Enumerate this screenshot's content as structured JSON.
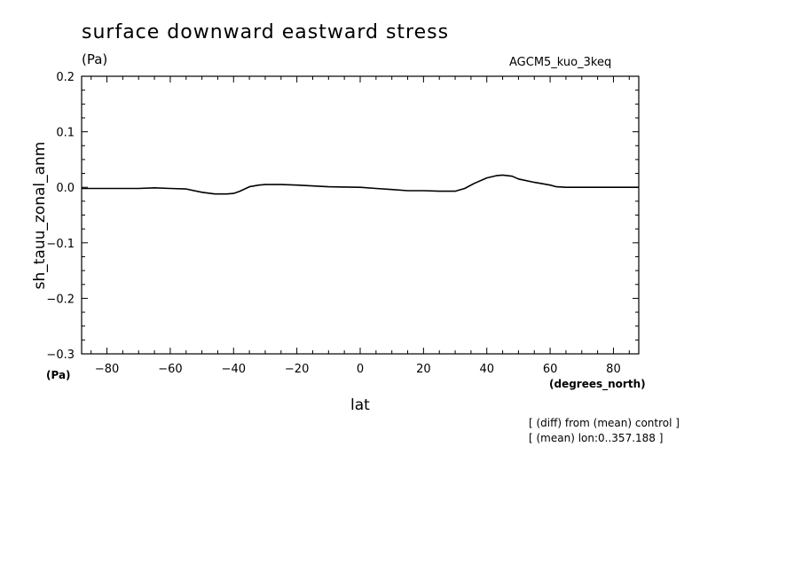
{
  "header": {
    "title": "surface downward eastward stress",
    "units": "(Pa)",
    "experiment": "AGCM5_kuo_3keq"
  },
  "footer": {
    "note_1": "[ (diff) from (mean) control ]",
    "note_2": "[ (mean) lon:0..357.188 ]"
  },
  "chart_data": {
    "type": "line",
    "xlabel": "lat",
    "x_unit": "(degrees_north)",
    "ylabel": "sh_tauu_zonal_anm",
    "y_unit": "(Pa)",
    "xlim": [
      -88,
      88
    ],
    "ylim": [
      -0.3,
      0.2
    ],
    "x_ticks": [
      -80,
      -60,
      -40,
      -20,
      0,
      20,
      40,
      60,
      80
    ],
    "x_tick_labels": [
      "−80",
      "−60",
      "−40",
      "−20",
      "0",
      "20",
      "40",
      "60",
      "80"
    ],
    "y_ticks": [
      0.2,
      0.1,
      0.0,
      -0.1,
      -0.2,
      -0.3
    ],
    "y_tick_labels": [
      "0.2",
      "0.1",
      "0.0",
      "−0.1",
      "−0.2",
      "−0.3"
    ],
    "grid": false,
    "series": [
      {
        "color": "#000000",
        "x": [
          -88,
          -80,
          -70,
          -65,
          -60,
          -55,
          -50,
          -46,
          -42,
          -40,
          -38,
          -35,
          -32,
          -30,
          -25,
          -20,
          -10,
          0,
          5,
          10,
          15,
          20,
          25,
          30,
          33,
          36,
          40,
          43,
          45,
          48,
          50,
          55,
          60,
          62,
          65,
          70,
          80,
          88
        ],
        "y": [
          -0.002,
          -0.002,
          -0.002,
          -0.001,
          -0.002,
          -0.003,
          -0.009,
          -0.012,
          -0.012,
          -0.011,
          -0.007,
          0.001,
          0.004,
          0.005,
          0.005,
          0.004,
          0.001,
          0.0,
          -0.002,
          -0.004,
          -0.006,
          -0.006,
          -0.007,
          -0.007,
          -0.002,
          0.007,
          0.017,
          0.021,
          0.022,
          0.02,
          0.015,
          0.009,
          0.004,
          0.001,
          0.0,
          0.0,
          0.0,
          0.0
        ]
      }
    ]
  }
}
